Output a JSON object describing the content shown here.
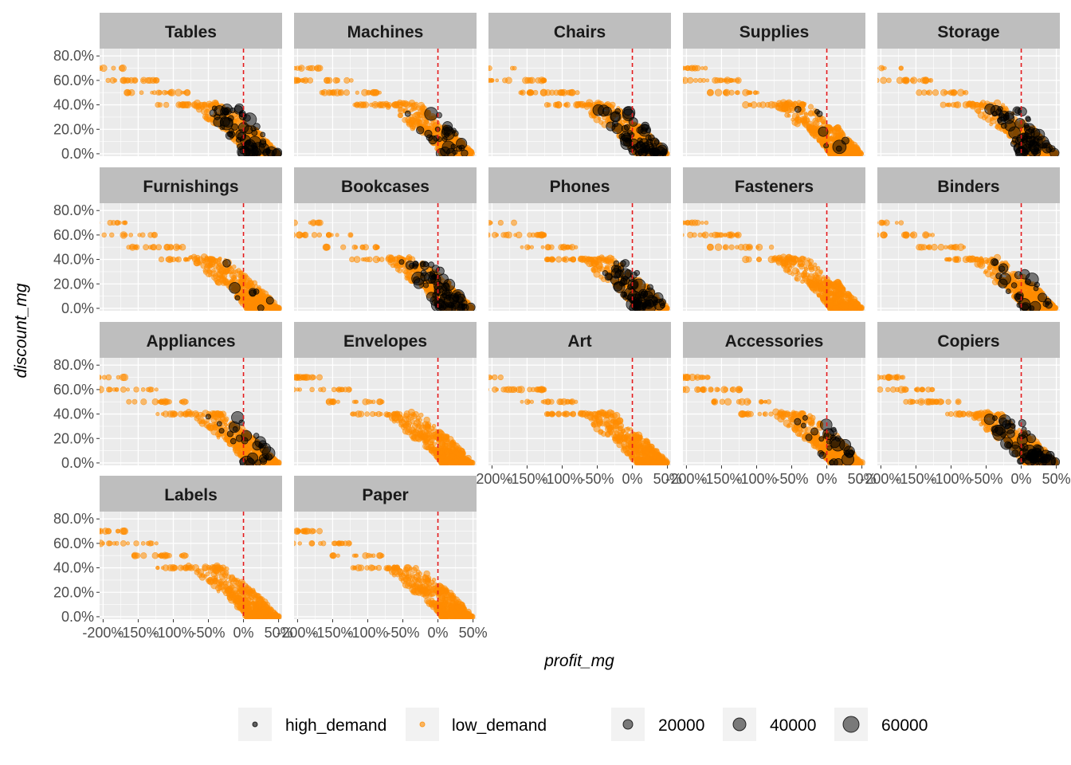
{
  "chart_data": {
    "type": "scatter",
    "facet_layout": {
      "ncol": 5,
      "nrow": 4
    },
    "x_label": "profit_mg",
    "y_label": "discount_mg",
    "x_range": [
      -2.05,
      0.55
    ],
    "y_range": [
      -0.02,
      0.86
    ],
    "x_ticks": [
      {
        "v": -2.0,
        "label": "-200%"
      },
      {
        "v": -1.5,
        "label": "-150%"
      },
      {
        "v": -1.0,
        "label": "-100%"
      },
      {
        "v": -0.5,
        "label": "-50%"
      },
      {
        "v": 0.0,
        "label": "0%"
      },
      {
        "v": 0.5,
        "label": "50%"
      }
    ],
    "y_ticks": [
      {
        "v": 0.0,
        "label": "0.0%"
      },
      {
        "v": 0.2,
        "label": "20.0%"
      },
      {
        "v": 0.4,
        "label": "40.0%"
      },
      {
        "v": 0.6,
        "label": "60.0%"
      },
      {
        "v": 0.8,
        "label": "80.0%"
      }
    ],
    "reference_line": {
      "x": 0,
      "color": "#e41a1c",
      "style": "dashed"
    },
    "colors": {
      "high_demand": "#000000",
      "low_demand": "#ff8c00",
      "panel_bg": "#ebebeb",
      "grid": "#ffffff",
      "strip_bg": "#bebebe"
    },
    "legend": {
      "color": [
        {
          "label": "high_demand",
          "color": "#000000"
        },
        {
          "label": "low_demand",
          "color": "#ff8c00"
        }
      ],
      "size": [
        {
          "label": "20000",
          "size_value": 20000
        },
        {
          "label": "40000",
          "size_value": 40000
        },
        {
          "label": "60000",
          "size_value": 60000
        }
      ]
    },
    "facets": [
      {
        "name": "Tables",
        "high": "dense"
      },
      {
        "name": "Machines",
        "high": "medium"
      },
      {
        "name": "Chairs",
        "high": "dense"
      },
      {
        "name": "Supplies",
        "high": "few"
      },
      {
        "name": "Storage",
        "high": "dense"
      },
      {
        "name": "Furnishings",
        "high": "few"
      },
      {
        "name": "Bookcases",
        "high": "dense"
      },
      {
        "name": "Phones",
        "high": "dense"
      },
      {
        "name": "Fasteners",
        "high": "none"
      },
      {
        "name": "Binders",
        "high": "medium"
      },
      {
        "name": "Appliances",
        "high": "medium"
      },
      {
        "name": "Envelopes",
        "high": "none"
      },
      {
        "name": "Art",
        "high": "none"
      },
      {
        "name": "Accessories",
        "high": "medium"
      },
      {
        "name": "Copiers",
        "high": "dense"
      },
      {
        "name": "Labels",
        "high": "none"
      },
      {
        "name": "Paper",
        "high": "none"
      }
    ]
  }
}
